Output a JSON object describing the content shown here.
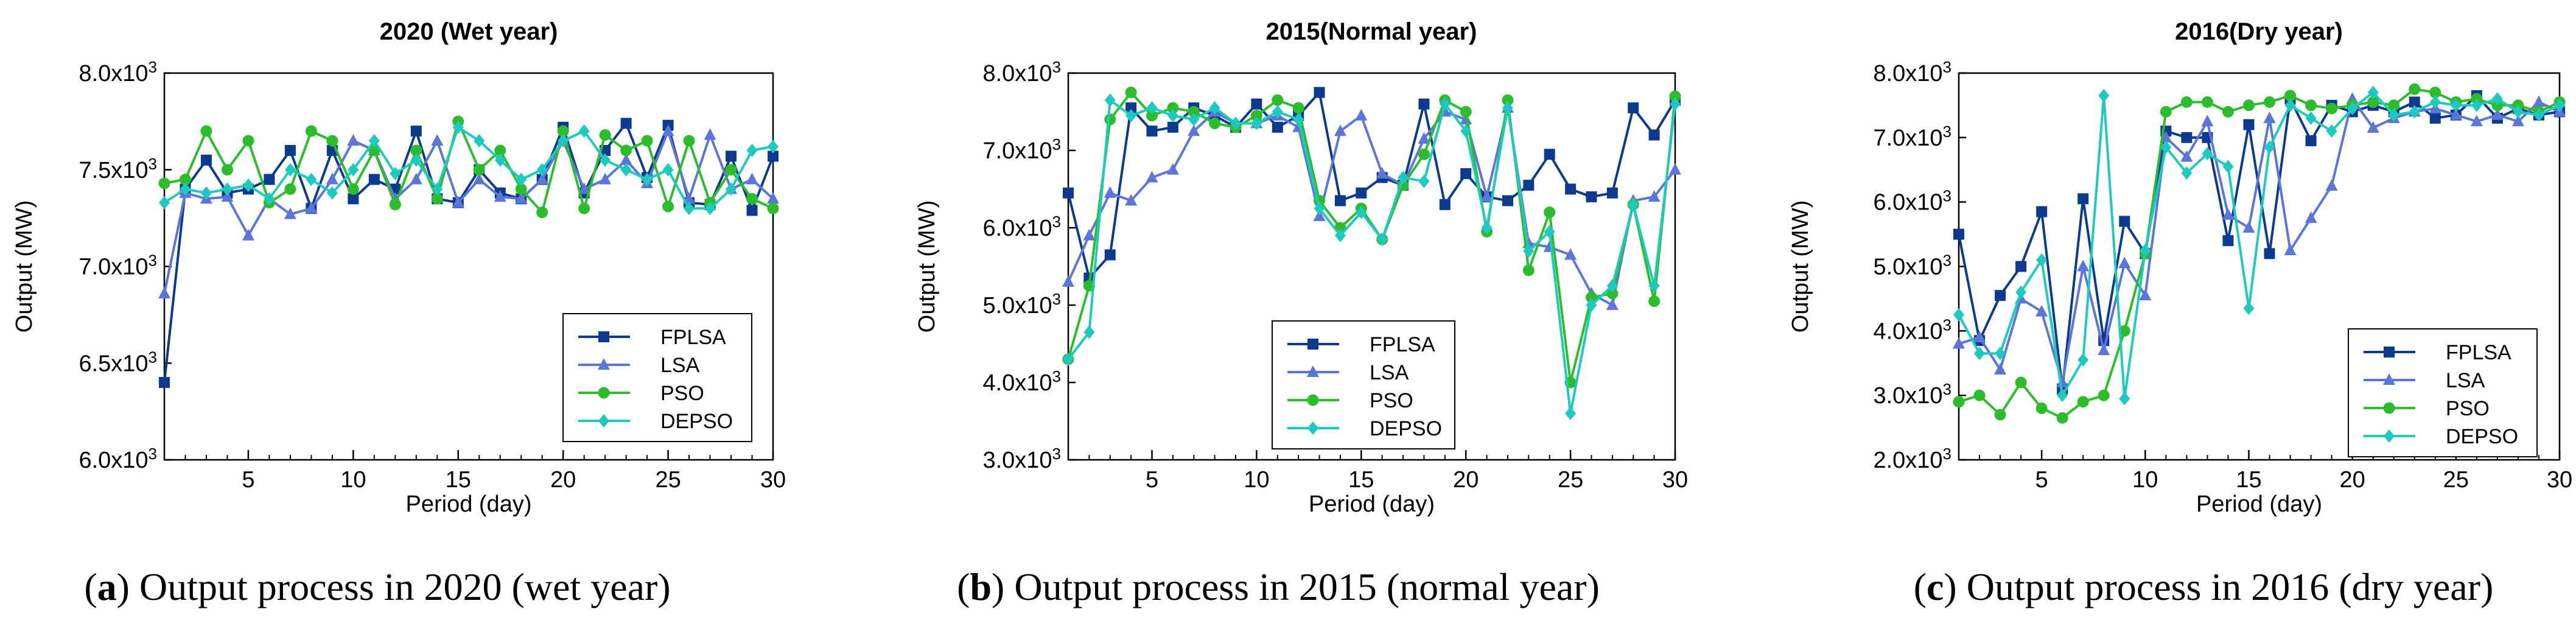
{
  "colors": {
    "FPLSA": "#0b3a8f",
    "LSA": "#5b76d8",
    "PSO": "#2cbd2c",
    "DEPSO": "#1ec9c0"
  },
  "legend_labels": [
    "FPLSA",
    "LSA",
    "PSO",
    "DEPSO"
  ],
  "panels": [
    {
      "title": "2020 (Wet year)",
      "caption": {
        "letter": "a",
        "text": " Output process in 2020 (wet year)"
      }
    },
    {
      "title": "2015(Normal year)",
      "caption": {
        "letter": "b",
        "text": " Output process in 2015 (normal year)"
      }
    },
    {
      "title": "2016(Dry year)",
      "caption": {
        "letter": "c",
        "text": " Output process in 2016 (dry year)"
      }
    }
  ],
  "chart_data": [
    {
      "type": "line",
      "title": "2020 (Wet year)",
      "xlabel": "Period (day)",
      "ylabel": "Output (MW)",
      "xlim": [
        1,
        30
      ],
      "ylim": [
        6000,
        8000
      ],
      "xticks": [
        5,
        10,
        15,
        20,
        25,
        30
      ],
      "yticks": [
        6000,
        6500,
        7000,
        7500,
        8000
      ],
      "ytick_labels": [
        "6.0x10³",
        "6.5x10³",
        "7.0x10³",
        "7.5x10³",
        "8.0x10³"
      ],
      "legend_position": "bottom-right",
      "x": [
        1,
        2,
        3,
        4,
        5,
        6,
        7,
        8,
        9,
        10,
        11,
        12,
        13,
        14,
        15,
        16,
        17,
        18,
        19,
        20,
        21,
        22,
        23,
        24,
        25,
        26,
        27,
        28,
        29,
        30
      ],
      "series": [
        {
          "name": "FPLSA",
          "values": [
            6400,
            7400,
            7550,
            7380,
            7400,
            7450,
            7600,
            7300,
            7600,
            7350,
            7450,
            7400,
            7700,
            7350,
            7330,
            7500,
            7380,
            7350,
            7450,
            7720,
            7380,
            7600,
            7740,
            7460,
            7730,
            7330,
            7320,
            7570,
            7290,
            7570
          ]
        },
        {
          "name": "LSA",
          "values": [
            6860,
            7380,
            7350,
            7360,
            7160,
            7350,
            7270,
            7300,
            7450,
            7650,
            7600,
            7350,
            7450,
            7650,
            7330,
            7450,
            7360,
            7350,
            7450,
            7650,
            7400,
            7450,
            7550,
            7430,
            7700,
            7350,
            7680,
            7400,
            7450,
            7350
          ]
        },
        {
          "name": "PSO",
          "values": [
            7430,
            7450,
            7700,
            7500,
            7650,
            7330,
            7400,
            7700,
            7650,
            7400,
            7600,
            7320,
            7600,
            7350,
            7750,
            7500,
            7600,
            7400,
            7280,
            7700,
            7300,
            7680,
            7600,
            7650,
            7310,
            7650,
            7330,
            7500,
            7350,
            7300
          ]
        },
        {
          "name": "DEPSO",
          "values": [
            7330,
            7400,
            7380,
            7400,
            7420,
            7350,
            7500,
            7450,
            7380,
            7500,
            7650,
            7480,
            7550,
            7400,
            7720,
            7650,
            7550,
            7450,
            7500,
            7650,
            7700,
            7550,
            7500,
            7450,
            7500,
            7300,
            7300,
            7400,
            7600,
            7620
          ]
        }
      ]
    },
    {
      "type": "line",
      "title": "2015(Normal year)",
      "xlabel": "Period (day)",
      "ylabel": "Output (MW)",
      "xlim": [
        1,
        30
      ],
      "ylim": [
        3000,
        8000
      ],
      "xticks": [
        5,
        10,
        15,
        20,
        25,
        30
      ],
      "yticks": [
        3000,
        4000,
        5000,
        6000,
        7000,
        8000
      ],
      "ytick_labels": [
        "3.0x10³",
        "4.0x10³",
        "5.0x10³",
        "6.0x10³",
        "7.0x10³",
        "8.0x10³"
      ],
      "legend_position": "bottom-left",
      "x": [
        1,
        2,
        3,
        4,
        5,
        6,
        7,
        8,
        9,
        10,
        11,
        12,
        13,
        14,
        15,
        16,
        17,
        18,
        19,
        20,
        21,
        22,
        23,
        24,
        25,
        26,
        27,
        28,
        29,
        30
      ],
      "series": [
        {
          "name": "FPLSA",
          "values": [
            6450,
            5350,
            5650,
            7550,
            7250,
            7300,
            7550,
            7450,
            7300,
            7600,
            7300,
            7450,
            7750,
            6350,
            6450,
            6650,
            6550,
            7600,
            6300,
            6700,
            6400,
            6350,
            6550,
            6950,
            6500,
            6400,
            6450,
            7550,
            7200,
            7650
          ]
        },
        {
          "name": "LSA",
          "values": [
            5300,
            5900,
            6450,
            6350,
            6650,
            6750,
            7250,
            7500,
            7350,
            7350,
            7450,
            7300,
            6150,
            7250,
            7450,
            6700,
            6550,
            7150,
            7500,
            7400,
            6400,
            7550,
            5800,
            5750,
            5650,
            5150,
            5000,
            6350,
            6400,
            6750
          ]
        },
        {
          "name": "PSO",
          "values": [
            4300,
            5250,
            7400,
            7750,
            7450,
            7550,
            7500,
            7350,
            7300,
            7450,
            7650,
            7550,
            6350,
            6000,
            6250,
            5850,
            6550,
            6950,
            7650,
            7500,
            5950,
            7650,
            5450,
            6200,
            4000,
            5100,
            5150,
            6300,
            5050,
            7700
          ]
        },
        {
          "name": "DEPSO",
          "values": [
            4300,
            4650,
            7650,
            7450,
            7550,
            7450,
            7400,
            7550,
            7350,
            7350,
            7500,
            7400,
            6250,
            5900,
            6200,
            5850,
            6650,
            6600,
            7600,
            7250,
            6000,
            7550,
            5700,
            5950,
            3600,
            5000,
            5250,
            6300,
            5250,
            7600
          ]
        }
      ]
    },
    {
      "type": "line",
      "title": "2016(Dry year)",
      "xlabel": "Period (day)",
      "ylabel": "Output (MW)",
      "xlim": [
        1,
        30
      ],
      "ylim": [
        2000,
        8000
      ],
      "xticks": [
        5,
        10,
        15,
        20,
        25,
        30
      ],
      "yticks": [
        2000,
        3000,
        4000,
        5000,
        6000,
        7000,
        8000
      ],
      "ytick_labels": [
        "2.0x10³",
        "3.0x10³",
        "4.0x10³",
        "5.0x10³",
        "6.0x10³",
        "7.0x10³",
        "8.0x10³"
      ],
      "legend_position": "bottom-right",
      "x": [
        1,
        2,
        3,
        4,
        5,
        6,
        7,
        8,
        9,
        10,
        11,
        12,
        13,
        14,
        15,
        16,
        17,
        18,
        19,
        20,
        21,
        22,
        23,
        24,
        25,
        26,
        27,
        28,
        29,
        30
      ],
      "series": [
        {
          "name": "FPLSA",
          "values": [
            5500,
            3850,
            4550,
            5000,
            5850,
            3100,
            6050,
            3850,
            5700,
            5200,
            7100,
            7000,
            7000,
            5400,
            7200,
            5200,
            7600,
            6950,
            7500,
            7400,
            7500,
            7400,
            7550,
            7300,
            7350,
            7650,
            7300,
            7450,
            7350,
            7400
          ]
        },
        {
          "name": "LSA",
          "values": [
            3800,
            3900,
            3400,
            4500,
            4300,
            3200,
            5000,
            3700,
            5050,
            4550,
            7000,
            6700,
            7250,
            5800,
            5600,
            7300,
            5250,
            5750,
            6250,
            7600,
            7150,
            7300,
            7400,
            7450,
            7350,
            7250,
            7350,
            7250,
            7550,
            7400
          ]
        },
        {
          "name": "PSO",
          "values": [
            2900,
            3000,
            2700,
            3200,
            2800,
            2650,
            2900,
            3000,
            4000,
            5200,
            7400,
            7550,
            7550,
            7400,
            7500,
            7550,
            7650,
            7500,
            7450,
            7500,
            7550,
            7500,
            7750,
            7700,
            7550,
            7600,
            7500,
            7500,
            7400,
            7550
          ]
        },
        {
          "name": "DEPSO",
          "values": [
            4250,
            3650,
            3650,
            4600,
            5100,
            3000,
            3550,
            7650,
            2950,
            5250,
            6850,
            6450,
            6750,
            6550,
            4350,
            6850,
            7500,
            7300,
            7100,
            7450,
            7700,
            7350,
            7400,
            7550,
            7500,
            7500,
            7600,
            7400,
            7350,
            7500
          ]
        }
      ]
    }
  ]
}
